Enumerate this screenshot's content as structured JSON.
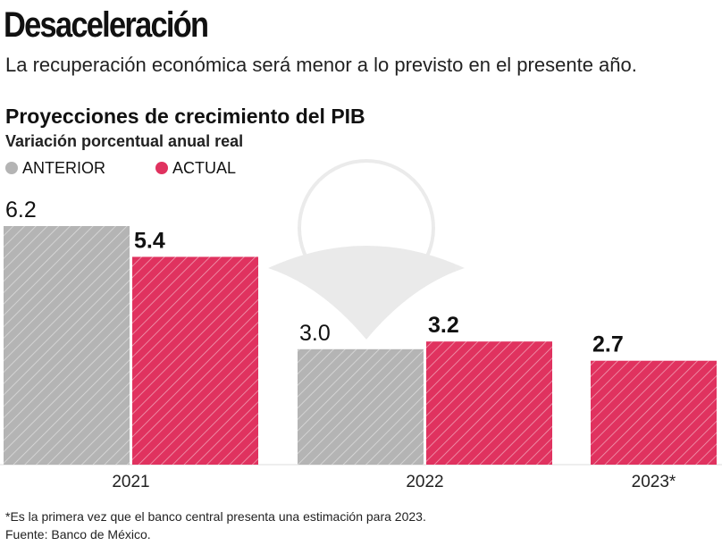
{
  "title": "Desaceleración",
  "subtitle": "La recuperación económica será menor a lo previsto en el presente año.",
  "chart_data": {
    "type": "bar",
    "title": "Proyecciones de crecimiento del PIB",
    "subtitle": "Variación porcentual anual real",
    "categories": [
      "2021",
      "2022",
      "2023*"
    ],
    "series": [
      {
        "name": "ANTERIOR",
        "color": "#b4b4b4",
        "values": [
          6.2,
          3.0,
          null
        ],
        "labels": [
          "6.2",
          "3.0",
          null
        ]
      },
      {
        "name": "ACTUAL",
        "color": "#e0325f",
        "values": [
          5.4,
          3.2,
          2.7
        ],
        "labels": [
          "5.4",
          "3.2",
          "2.7"
        ]
      }
    ],
    "legend": "top-left",
    "ylim": [
      0,
      6.2
    ],
    "grid": false
  },
  "footnote": "*Es la primera vez que el banco central presenta una estimación para 2023.",
  "source": "Fuente: Banco de México."
}
